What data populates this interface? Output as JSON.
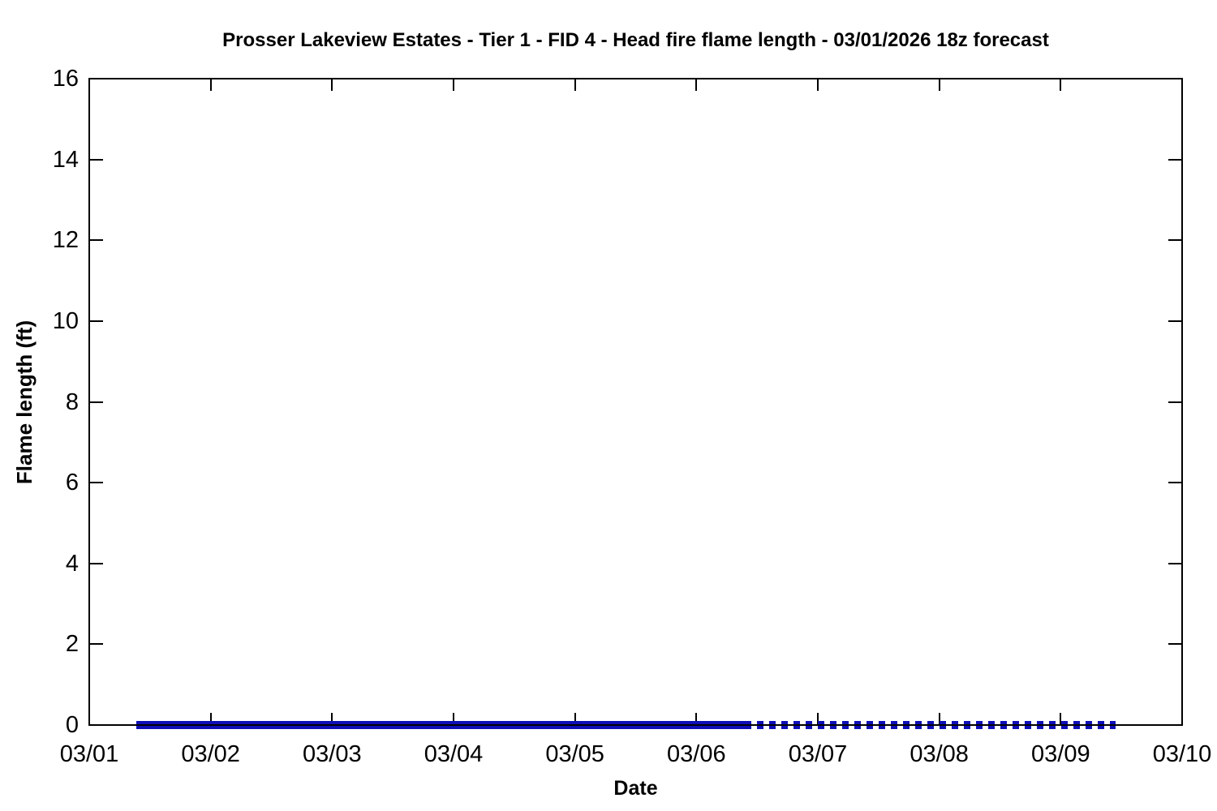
{
  "page": {
    "background_color": "#ffffff",
    "axis_color": "#000000",
    "text_color": "#000000"
  },
  "chart_data": {
    "type": "line",
    "title": "Prosser Lakeview Estates - Tier 1 - FID 4 - Head fire flame length - 03/01/2026 18z forecast",
    "xlabel": "Date",
    "ylabel": "Flame length (ft)",
    "x_tick_labels": [
      "03/01",
      "03/02",
      "03/03",
      "03/04",
      "03/05",
      "03/06",
      "03/07",
      "03/08",
      "03/09",
      "03/10"
    ],
    "x_range_days": [
      0,
      9
    ],
    "ylim": [
      0,
      16
    ],
    "y_ticks": [
      0,
      2,
      4,
      6,
      8,
      10,
      12,
      14,
      16
    ],
    "grid": false,
    "legend_position": "none",
    "line_color": "#0e0eb8",
    "series": [
      {
        "name": "Head fire flame length (solid segment, 03/01-03/06)",
        "style": "solid",
        "y_value": 0,
        "x_start_day": 0.39,
        "x_end_day": 5.45
      },
      {
        "name": "Head fire flame length (dashed extended-forecast segment, 03/06 12z-03/09)",
        "style": "dashed",
        "y_value": 0,
        "x_start_day": 5.5,
        "x_end_day": 8.45
      }
    ]
  }
}
